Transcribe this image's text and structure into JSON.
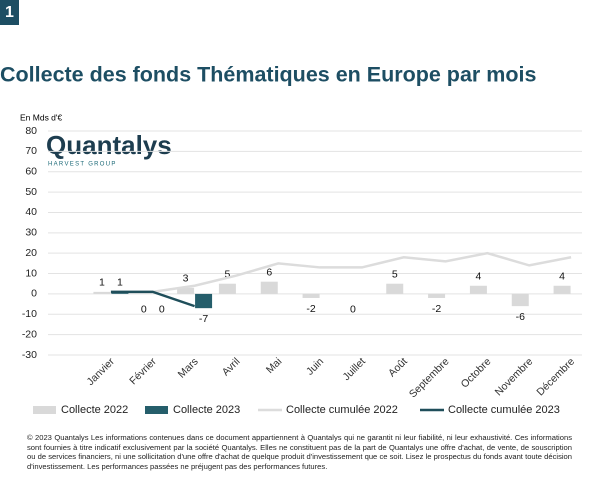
{
  "badge": "1",
  "logo": {
    "name": "Quantalys",
    "tagline": "HARVEST GROUP"
  },
  "footer": "© 2023 Quantalys Les informations contenues dans ce document appartiennent à Quantalys qui ne garantit ni leur fiabilité, ni leur exhaustivité. Ces informations sont fournies à titre indicatif exclusivement par la société Quantalys. Elles ne constituent pas de la part de Quantalys une offre d'achat, de vente, de souscription ou de services financiers, ni une sollicitation d'une offre d'achat de quelque produit d'investissement que ce soit. Lisez le prospectus du fonds avant toute décision d'investissement. Les performances passées ne préjugent pas des performances futures.",
  "chart_data": {
    "type": "bar",
    "title": "Collecte des fonds Thématiques en Europe par mois",
    "y_label": "En Mds d'€",
    "categories": [
      "Janvier",
      "Février",
      "Mars",
      "Avril",
      "Mai",
      "Juin",
      "Juillet",
      "Août",
      "Septembre",
      "Octobre",
      "Novembre",
      "Décembre"
    ],
    "series": [
      {
        "name": "Collecte 2022",
        "type": "bar",
        "color": "#d9d9d9",
        "values": [
          1,
          0,
          3,
          5,
          6,
          -2,
          0,
          5,
          -2,
          4,
          -6,
          4
        ]
      },
      {
        "name": "Collecte 2023",
        "type": "bar",
        "color": "#255e6b",
        "values": [
          1,
          0,
          -7,
          null,
          null,
          null,
          null,
          null,
          null,
          null,
          null,
          null
        ]
      },
      {
        "name": "Collecte cumulée 2022",
        "type": "line",
        "color": "#dcdcdc",
        "values": [
          1,
          1,
          4,
          9,
          15,
          13,
          13,
          18,
          16,
          20,
          14,
          18
        ]
      },
      {
        "name": "Collecte cumulée 2023",
        "type": "line",
        "color": "#1f4e5a",
        "values": [
          1,
          1,
          -6,
          null,
          null,
          null,
          null,
          null,
          null,
          null,
          null,
          null
        ]
      }
    ],
    "ylim": [
      -30,
      80
    ],
    "yticks": [
      -30,
      -20,
      -10,
      0,
      10,
      20,
      30,
      40,
      50,
      60,
      70,
      80
    ],
    "grid": true
  }
}
